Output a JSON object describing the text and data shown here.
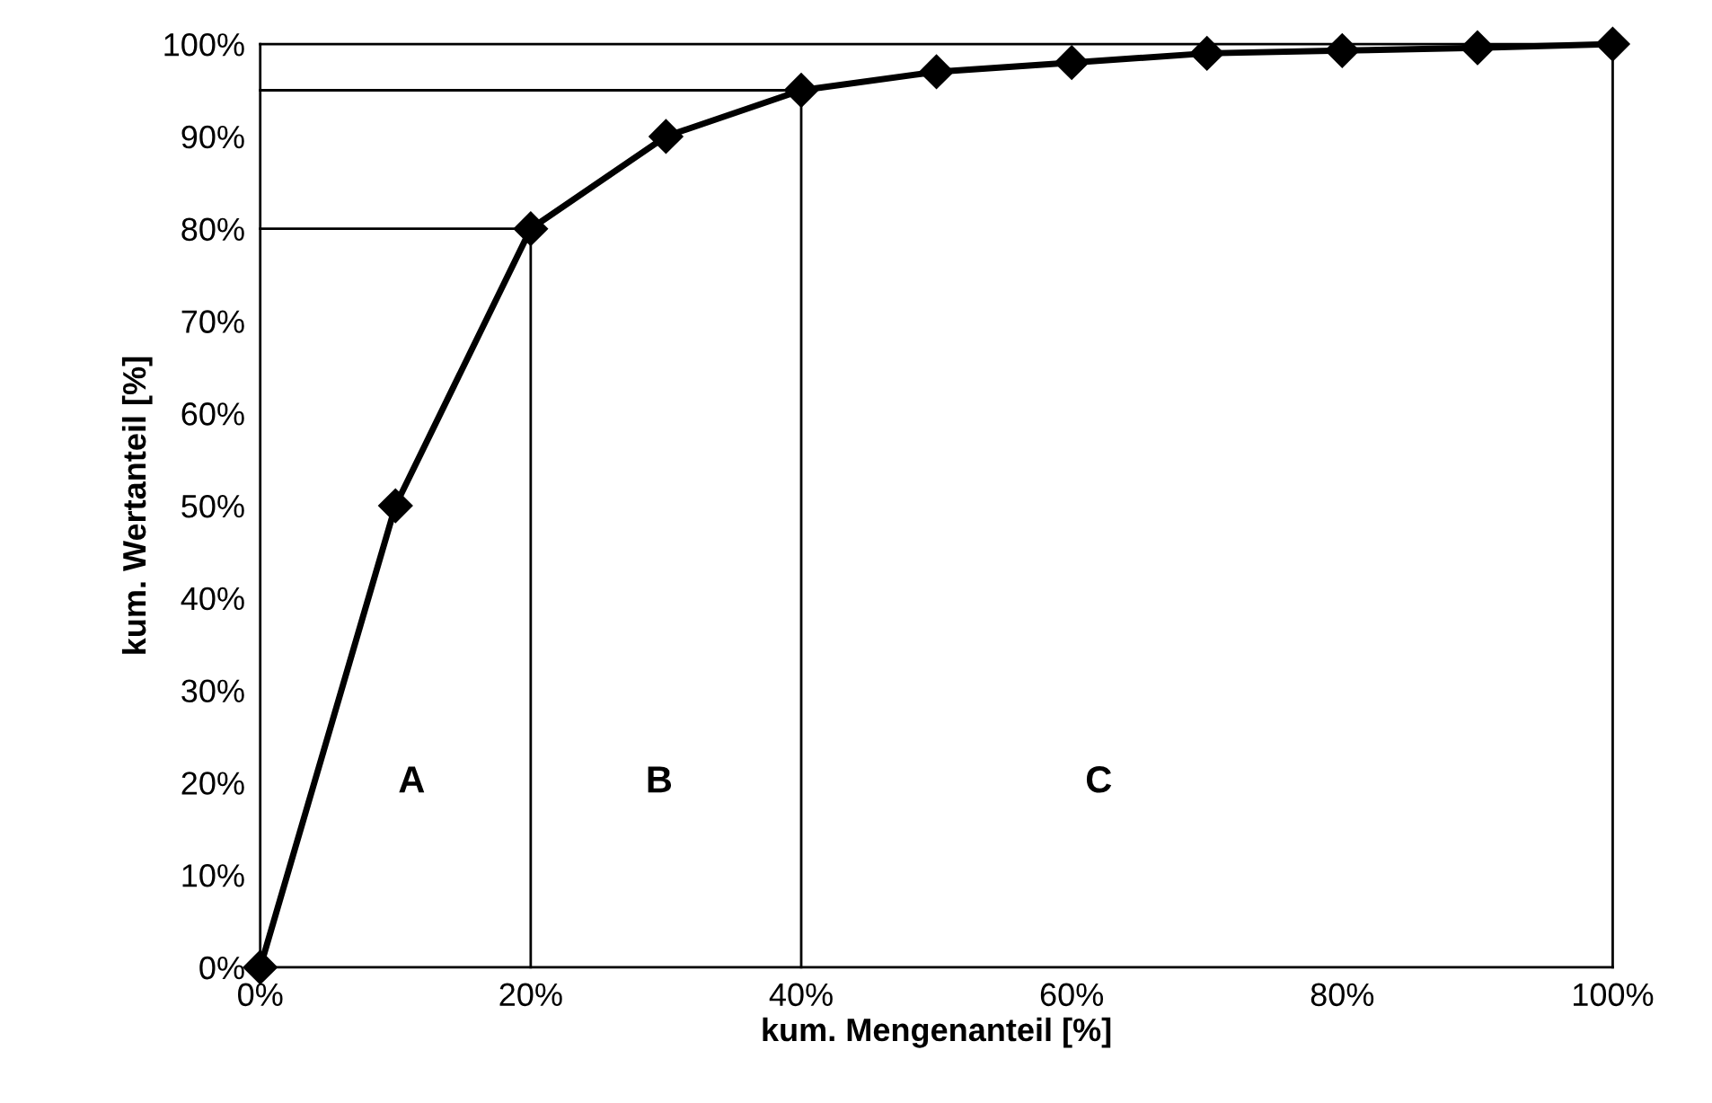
{
  "chart_data": {
    "type": "line",
    "xlabel": "kum. Mengenanteil [%]",
    "ylabel": "kum. Wertanteil [%]",
    "x": [
      0,
      10,
      20,
      30,
      40,
      50,
      60,
      70,
      80,
      90,
      100
    ],
    "series": [
      {
        "color": "#000000",
        "values": [
          0,
          50,
          80,
          90,
          95,
          97,
          98,
          99,
          99.3,
          99.6,
          100
        ],
        "marker": "diamond",
        "line_style": "solid"
      },
      {
        "type": "line",
        "color": "#000000",
        "x": [
          0,
          20,
          20
        ],
        "values": [
          80,
          80,
          0
        ],
        "marker": "none",
        "line_style": "solid"
      },
      {
        "type": "line",
        "color": "#000000",
        "x": [
          0,
          40,
          40
        ],
        "values": [
          95,
          95,
          0
        ],
        "marker": "none",
        "line_style": "solid"
      }
    ],
    "annotations": [
      "A",
      "B",
      "C"
    ],
    "xlim": [
      0,
      100
    ],
    "ylim": [
      0,
      100
    ],
    "xticks": [
      {
        "value": 0,
        "label": "0%"
      },
      {
        "value": 20,
        "label": "20%"
      },
      {
        "value": 40,
        "label": "40%"
      },
      {
        "value": 60,
        "label": "60%"
      },
      {
        "value": 80,
        "label": "80%"
      },
      {
        "value": 100,
        "label": "100%"
      }
    ],
    "yticks": [
      {
        "value": 0,
        "label": "0%"
      },
      {
        "value": 10,
        "label": "10%"
      },
      {
        "value": 20,
        "label": "20%"
      },
      {
        "value": 30,
        "label": "30%"
      },
      {
        "value": 40,
        "label": "40%"
      },
      {
        "value": 50,
        "label": "50%"
      },
      {
        "value": 60,
        "label": "60%"
      },
      {
        "value": 70,
        "label": "70%"
      },
      {
        "value": 80,
        "label": "80%"
      },
      {
        "value": 90,
        "label": "90%"
      },
      {
        "value": 100,
        "label": "100%"
      }
    ],
    "grid": false,
    "legend": false
  }
}
